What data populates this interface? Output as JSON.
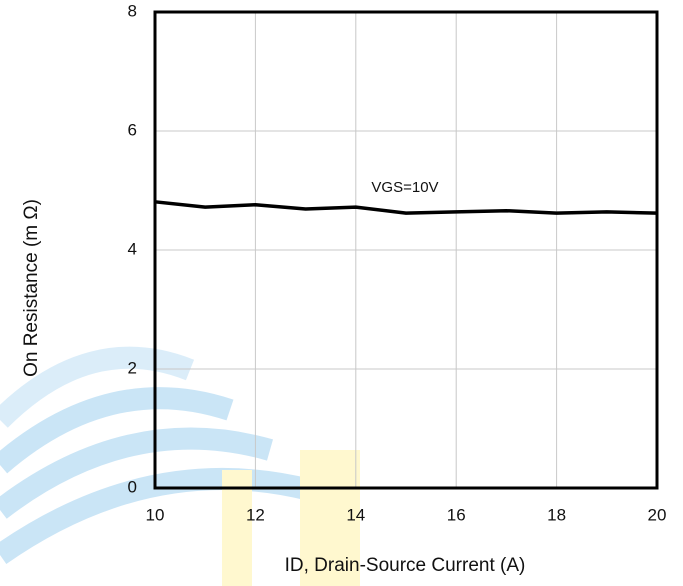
{
  "chart_data": {
    "type": "line",
    "x_label": "ID, Drain-Source Current (A)",
    "y_label": "On Resistance (m Ω)",
    "annotation": "VGS=10V",
    "x": [
      10,
      11,
      12,
      13,
      14,
      15,
      16,
      17,
      18,
      19,
      20
    ],
    "series": [
      {
        "color": "#000000",
        "values": [
          4.81,
          4.72,
          4.76,
          4.69,
          4.72,
          4.62,
          4.64,
          4.66,
          4.62,
          4.64,
          4.62
        ]
      }
    ],
    "xlim": [
      10,
      20
    ],
    "xticks": [
      10,
      12,
      14,
      16,
      18,
      20
    ],
    "ylim": [
      0,
      8
    ],
    "yticks": [
      0,
      2,
      4,
      6,
      8
    ],
    "grid": true
  }
}
